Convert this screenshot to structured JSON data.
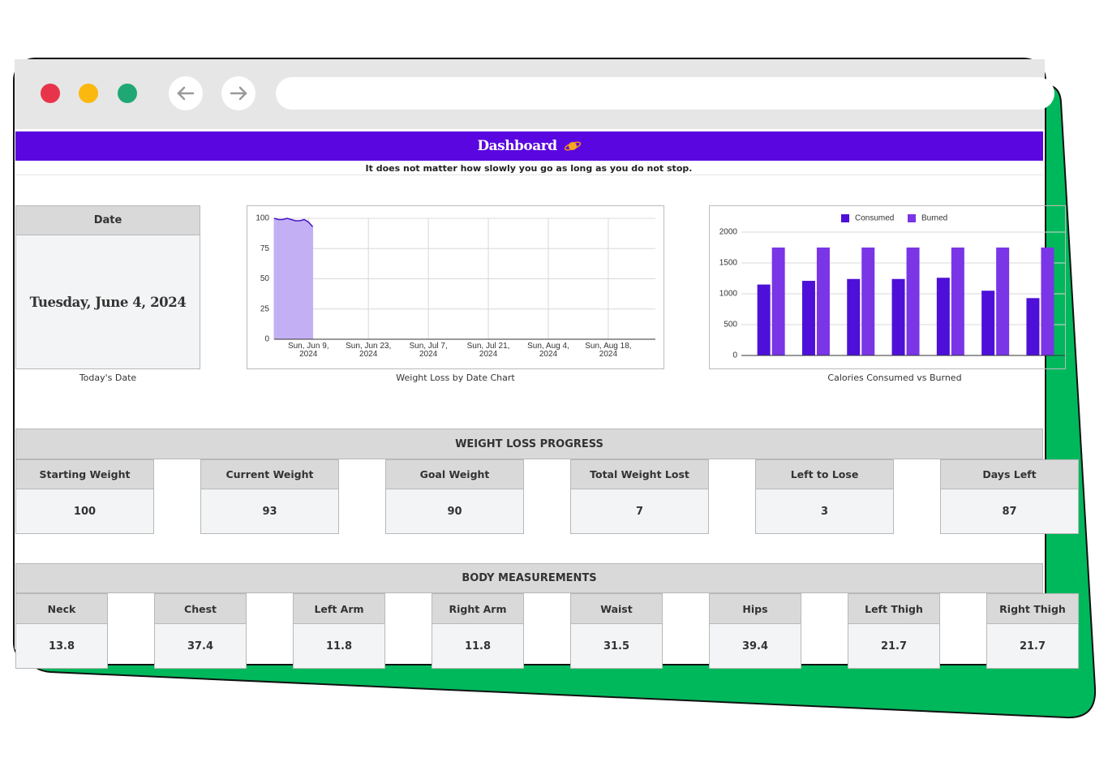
{
  "header": {
    "title": "Dashboard",
    "subtitle": "It does not matter how slowly you go as long as you do not stop."
  },
  "date_card": {
    "header": "Date",
    "value": "Tuesday, June 4, 2024",
    "caption": "Today's Date"
  },
  "chart_data": [
    {
      "type": "area",
      "title": "Weight Loss by Date Chart",
      "x": [
        "2024-06-01",
        "2024-06-02",
        "2024-06-03",
        "2024-06-04",
        "2024-06-05",
        "2024-06-06",
        "2024-06-07",
        "2024-06-08",
        "2024-06-09",
        "2024-06-10"
      ],
      "values": [
        100,
        99,
        99,
        100,
        99,
        98,
        98,
        99,
        97,
        93
      ],
      "color": "#c3b0f4",
      "line_color": "#4a12c9",
      "xlim": [
        "2024-06-01",
        "2024-08-29"
      ],
      "xticks": [
        {
          "value": "2024-06-09",
          "label": "Sun, Jun 9, 2024"
        },
        {
          "value": "2024-06-23",
          "label": "Sun, Jun 23, 2024"
        },
        {
          "value": "2024-07-07",
          "label": "Sun, Jul 7, 2024"
        },
        {
          "value": "2024-07-21",
          "label": "Sun, Jul 21, 2024"
        },
        {
          "value": "2024-08-04",
          "label": "Sun, Aug 4, 2024"
        },
        {
          "value": "2024-08-18",
          "label": "Sun, Aug 18, 2024"
        }
      ],
      "ylim": [
        0,
        100
      ],
      "yticks": [
        0,
        25,
        50,
        75,
        100
      ],
      "grid": true
    },
    {
      "type": "bar",
      "title": "Calories Consumed vs Burned",
      "categories": [
        null,
        null,
        null,
        null,
        null,
        null,
        null
      ],
      "series": [
        {
          "name": "Consumed",
          "color": "#4e10d8",
          "values": [
            1150,
            1210,
            1240,
            1240,
            1260,
            1050,
            930
          ]
        },
        {
          "name": "Burned",
          "color": "#7a35e6",
          "values": [
            1750,
            1750,
            1750,
            1750,
            1750,
            1750,
            1750
          ]
        }
      ],
      "ylim": [
        0,
        2000
      ],
      "yticks": [
        0,
        500,
        1000,
        1500,
        2000
      ],
      "grid": true,
      "legend": "top"
    }
  ],
  "progress": {
    "title": "WEIGHT LOSS PROGRESS",
    "cards": [
      {
        "label": "Starting Weight",
        "value": 100
      },
      {
        "label": "Current Weight",
        "value": 93
      },
      {
        "label": "Goal Weight",
        "value": 90
      },
      {
        "label": "Total Weight Lost",
        "value": 7
      },
      {
        "label": "Left to Lose",
        "value": 3
      },
      {
        "label": "Days Left",
        "value": 87
      }
    ]
  },
  "measurements": {
    "title": "BODY MEASUREMENTS",
    "cards": [
      {
        "label": "Neck",
        "value": 13.8
      },
      {
        "label": "Chest",
        "value": 37.4
      },
      {
        "label": "Left Arm",
        "value": 11.8
      },
      {
        "label": "Right Arm",
        "value": 11.8
      },
      {
        "label": "Waist",
        "value": 31.5
      },
      {
        "label": "Hips",
        "value": 39.4
      },
      {
        "label": "Left Thigh",
        "value": 21.7
      },
      {
        "label": "Right Thigh",
        "value": 21.7
      }
    ]
  }
}
